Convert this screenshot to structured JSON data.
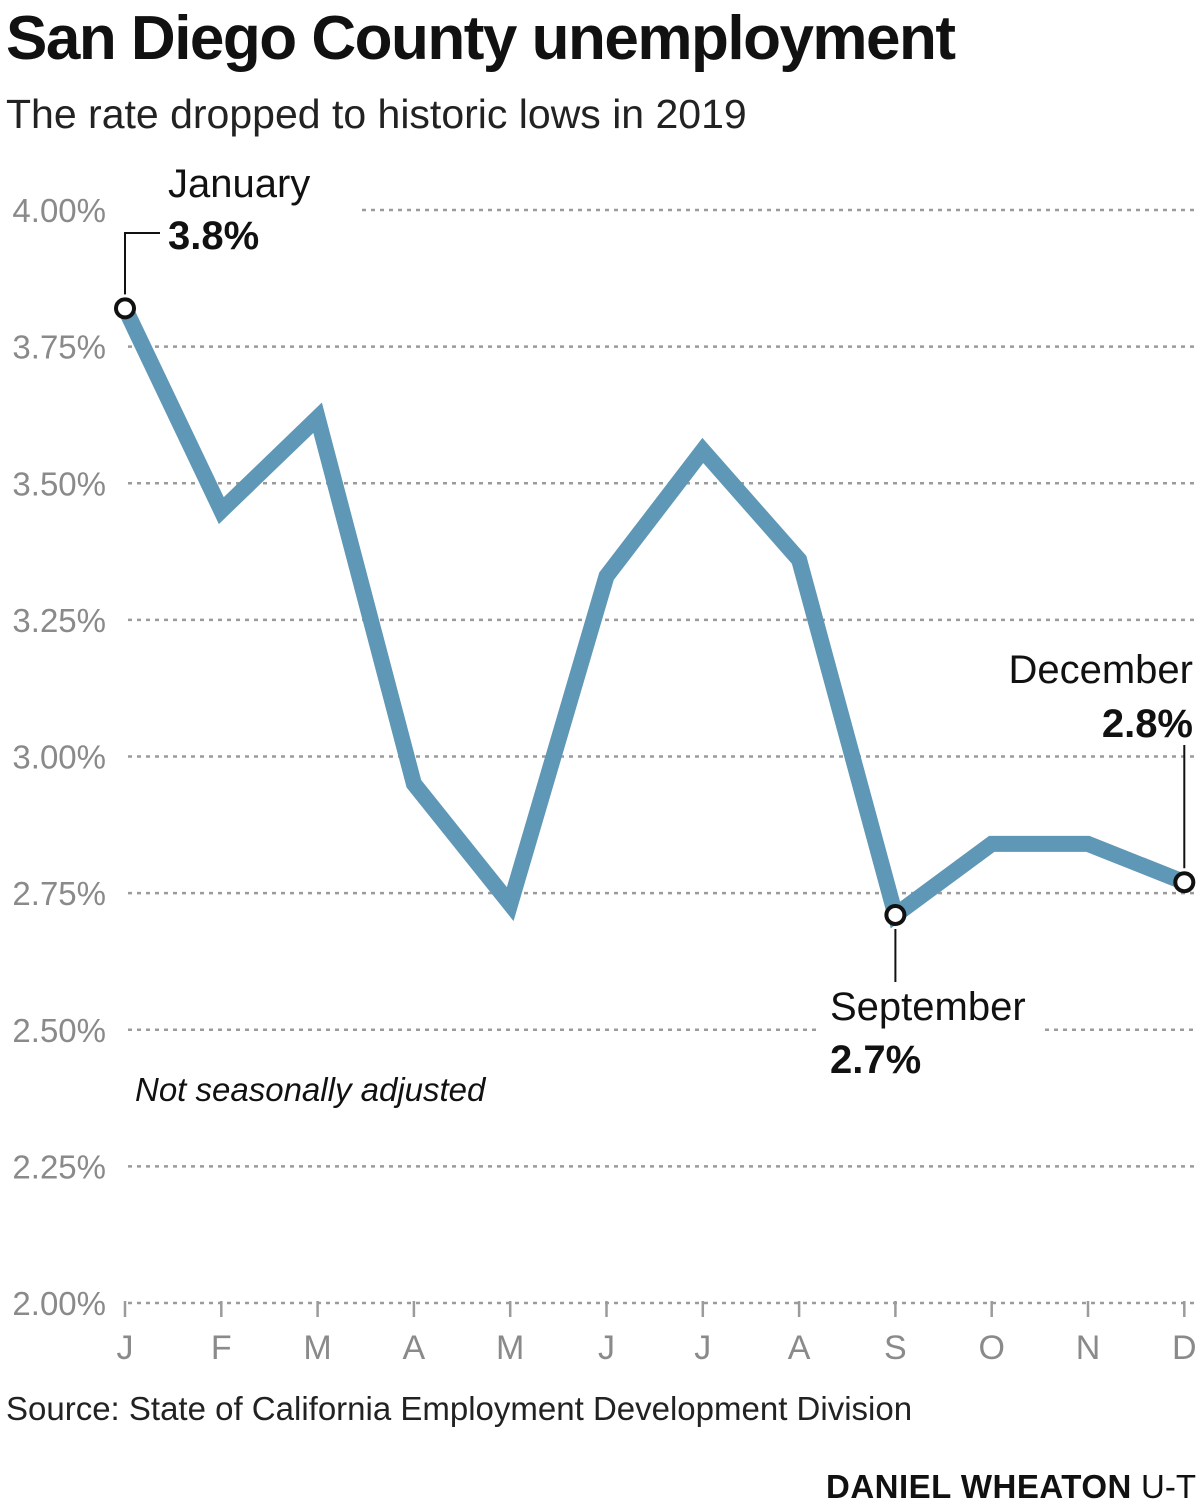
{
  "header": {
    "title": "San Diego County unemployment",
    "subtitle": "The rate dropped to historic lows in 2019"
  },
  "chart_data": {
    "type": "line",
    "categories": [
      "J",
      "F",
      "M",
      "A",
      "M",
      "J",
      "J",
      "A",
      "S",
      "O",
      "N",
      "D"
    ],
    "series": [
      {
        "values": [
          3.82,
          3.45,
          3.62,
          2.95,
          2.73,
          3.33,
          3.56,
          3.36,
          2.71,
          2.84,
          2.84,
          2.77
        ]
      }
    ],
    "ylim": [
      2.0,
      4.0
    ],
    "yticks": [
      2.0,
      2.25,
      2.5,
      2.75,
      3.0,
      3.25,
      3.5,
      3.75,
      4.0
    ],
    "ytick_labels": [
      "2.00%",
      "2.25%",
      "2.50%",
      "2.75%",
      "3.00%",
      "3.25%",
      "3.50%",
      "3.75%",
      "4.00%"
    ],
    "grid": true,
    "line_color": "#5f98b6",
    "annotations": [
      {
        "index": 0,
        "label": "January",
        "value": "3.8%"
      },
      {
        "index": 8,
        "label": "September",
        "value": "2.7%"
      },
      {
        "index": 11,
        "label": "December",
        "value": "2.8%"
      }
    ],
    "note": "Not seasonally adjusted"
  },
  "footer": {
    "source": "Source: State of California Employment Development Division",
    "credit_name": "DANIEL WHEATON",
    "credit_org": "U-T"
  }
}
